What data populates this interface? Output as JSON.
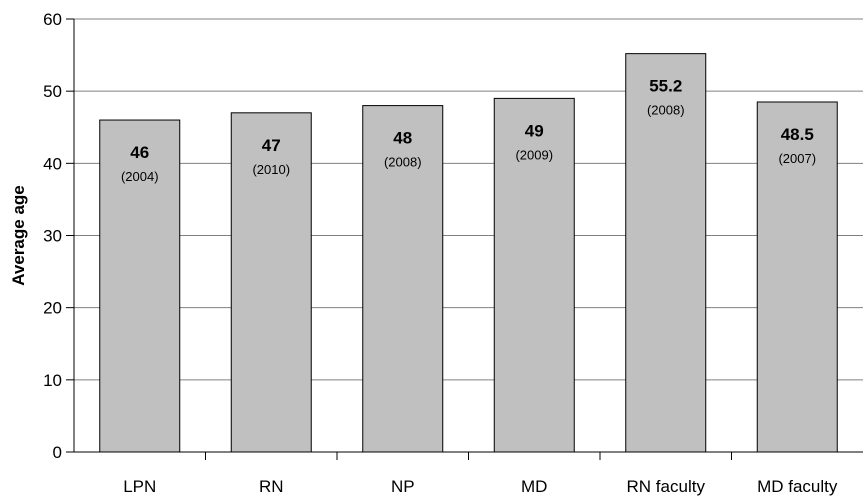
{
  "chart_data": {
    "type": "bar",
    "ylabel": "Average age",
    "ylim": [
      0,
      60
    ],
    "yticks": [
      0,
      10,
      20,
      30,
      40,
      50,
      60
    ],
    "grid": true,
    "categories": [
      "LPN",
      "RN",
      "NP",
      "MD",
      "RN faculty",
      "MD faculty"
    ],
    "values": [
      46,
      47,
      48,
      49,
      55.2,
      48.5
    ],
    "value_labels": [
      "46",
      "47",
      "48",
      "49",
      "55.2",
      "48.5"
    ],
    "years": [
      "(2004)",
      "(2010)",
      "(2008)",
      "(2009)",
      "(2008)",
      "(2007)"
    ],
    "colors": {
      "bar_fill": "#c0c0c0",
      "bar_stroke": "#000000",
      "grid": "#808080",
      "axis": "#000000"
    }
  }
}
